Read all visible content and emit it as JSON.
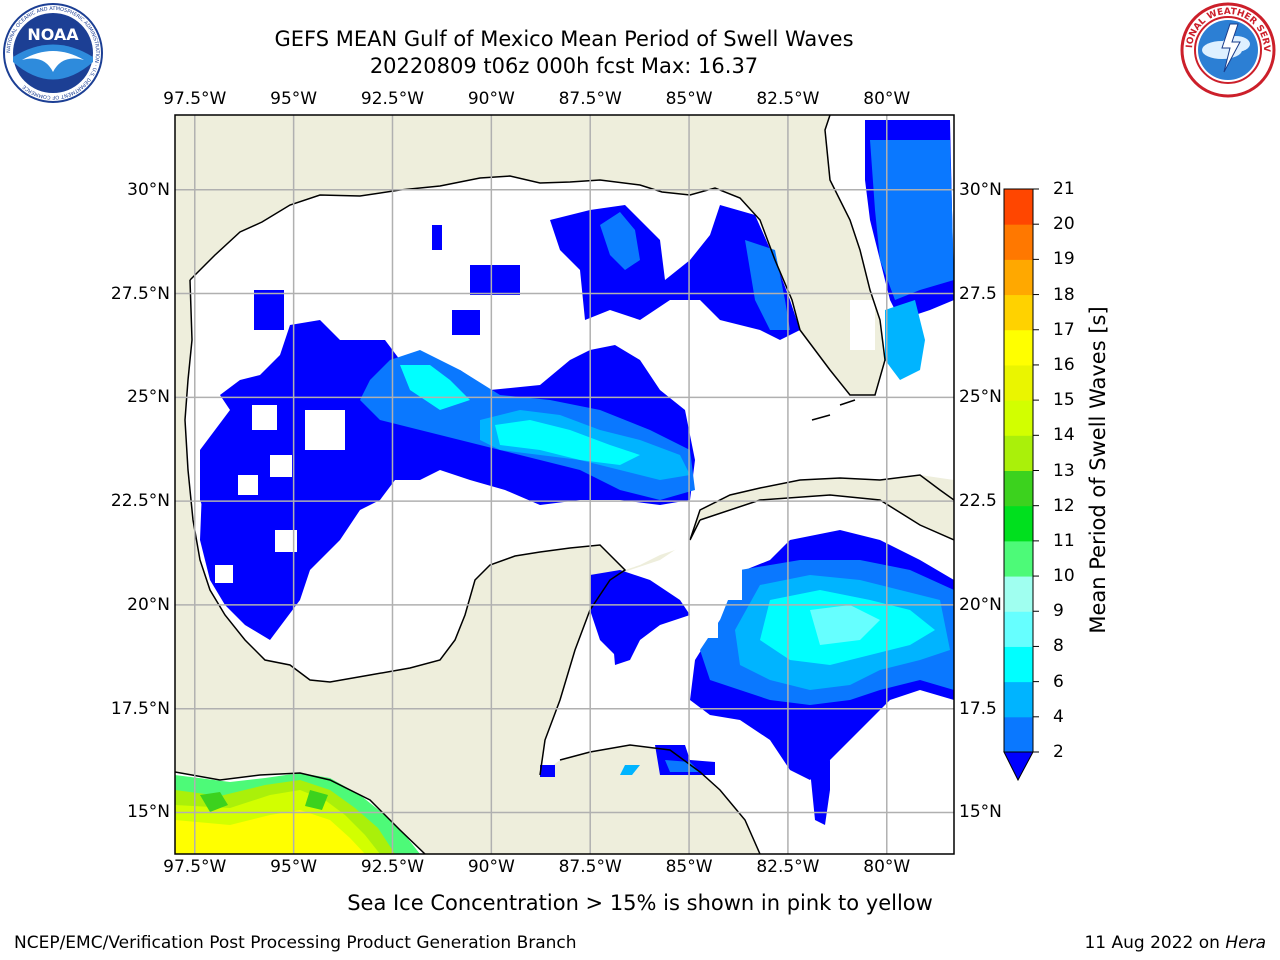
{
  "title": {
    "line1": "GEFS MEAN Gulf of Mexico Mean Period of Swell Waves",
    "line2": "20220809 t06z 000h fcst   Max: 16.37"
  },
  "logos": {
    "noaa": {
      "text": "NOAA",
      "ring_text": "NATIONAL OCEANIC AND ATMOSPHERIC ADMINISTRATION · U.S. DEPARTMENT OF COMMERCE"
    },
    "nws": {
      "ring_text": "NATIONAL WEATHER SERVICE"
    }
  },
  "map": {
    "lon_range": [
      -98.0,
      -78.3
    ],
    "lat_range": [
      14.0,
      31.8
    ],
    "lon_ticks": [
      -97.5,
      -95,
      -92.5,
      -90,
      -87.5,
      -85,
      -82.5,
      -80
    ],
    "lat_ticks": [
      15,
      17.5,
      20,
      22.5,
      25,
      27.5,
      30
    ],
    "lon_labels": [
      "97.5°W",
      "95°W",
      "92.5°W",
      "90°W",
      "87.5°W",
      "85°W",
      "82.5°W",
      "80°W"
    ],
    "lat_labels": [
      "15°N",
      "17.5°N",
      "20°N",
      "22.5°N",
      "25°N",
      "27.5°N",
      "30°N"
    ],
    "right_lat_labels": [
      "15°N",
      "17.5",
      "20°N",
      "22.5",
      "25°N",
      "27.5",
      "30°N"
    ],
    "land_color": "#eeeedc",
    "ocean_color": "#ffffff",
    "grid_color": "#b0b0b0",
    "coast_color": "#000000"
  },
  "colorbar": {
    "label": "Mean Period of Swell Waves [s]",
    "ticks": [
      "2",
      "4",
      "6",
      "8",
      "9",
      "10",
      "11",
      "12",
      "13",
      "14",
      "15",
      "16",
      "17",
      "18",
      "19",
      "20",
      "21"
    ],
    "colors": [
      "#0a78ff",
      "#00b4ff",
      "#00ffff",
      "#66ffff",
      "#a0fff0",
      "#4dfa78",
      "#00e01e",
      "#3cd21e",
      "#aaf00a",
      "#d2ff00",
      "#eaf500",
      "#ffff00",
      "#ffd200",
      "#ffa800",
      "#ff7800",
      "#ff4600",
      "#ff1400",
      "#ff0000"
    ],
    "extend_color": "#0000ff"
  },
  "ice_note": "Sea Ice Concentration > 15% is shown in pink to yellow",
  "footer": {
    "left": "NCEP/EMC/Verification Post Processing Product Generation Branch",
    "right_date": "11 Aug 2022 on ",
    "right_host": "Hera"
  }
}
